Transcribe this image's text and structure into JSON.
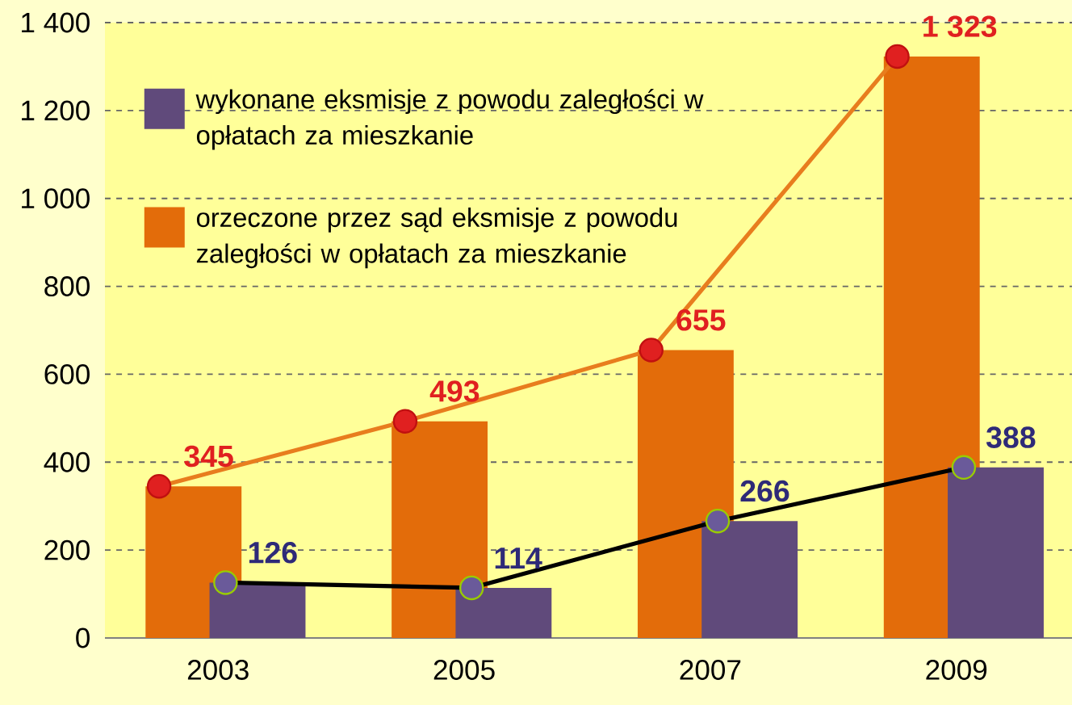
{
  "chart_data": {
    "type": "bar",
    "categories": [
      "2003",
      "2005",
      "2007",
      "2009"
    ],
    "series": [
      {
        "name": "wykonane eksmisje  z powodu zaległości w opłatach za mieszkanie",
        "color": "#604a7b",
        "values": [
          126,
          114,
          266,
          388
        ],
        "value_labels": [
          "126",
          "114",
          "266",
          "388"
        ]
      },
      {
        "name": "orzeczone przez sąd eksmisje z powodu zaległości w opłatach za mieszkanie",
        "color": "#e36c0a",
        "values": [
          345,
          493,
          655,
          1323
        ],
        "value_labels": [
          "345",
          "493",
          "655",
          "1 323"
        ]
      },
      {
        "type": "line",
        "color": "#000000",
        "values": [
          126,
          114,
          266,
          388
        ],
        "marker": "circle"
      },
      {
        "type": "line",
        "color": "#e87d1e",
        "values": [
          345,
          493,
          655,
          1323
        ],
        "marker": "circle"
      }
    ],
    "ylim": [
      0,
      1400
    ],
    "yticks": [
      0,
      200,
      400,
      600,
      800,
      {
        "value": 1000,
        "label": "1 000"
      },
      {
        "value": 1200,
        "label": "1 200"
      },
      {
        "value": 1400,
        "label": "1 400"
      }
    ],
    "grid": "y",
    "legend": "top left"
  }
}
